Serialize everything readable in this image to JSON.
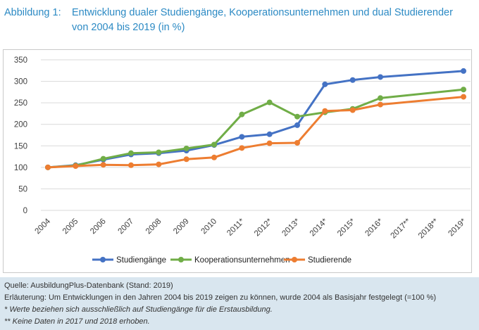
{
  "caption": {
    "number": "Abbildung 1:",
    "text": "Entwicklung dualer Studiengänge, Kooperationsunternehmen und dual Studierender von 2004 bis 2019 (in %)"
  },
  "chart_data": {
    "type": "line",
    "categories": [
      "2004",
      "2005",
      "2006",
      "2007",
      "2008",
      "2009",
      "2010",
      "2011*",
      "2012*",
      "2013*",
      "2014*",
      "2015*",
      "2016*",
      "2017**",
      "2018**",
      "2019*"
    ],
    "ylim": [
      0,
      350
    ],
    "yticks": [
      0,
      50,
      100,
      150,
      200,
      250,
      300,
      350
    ],
    "grid": true,
    "legend_position": "bottom",
    "series": [
      {
        "name": "Studiengänge",
        "color": "#4472c4",
        "values": [
          100,
          105,
          118,
          130,
          133,
          139,
          152,
          171,
          177,
          198,
          293,
          303,
          310,
          null,
          null,
          324
        ]
      },
      {
        "name": "Kooperationsunternehmen",
        "color": "#70ad47",
        "values": [
          100,
          104,
          120,
          133,
          135,
          144,
          153,
          223,
          251,
          218,
          228,
          236,
          261,
          null,
          null,
          281
        ]
      },
      {
        "name": "Studierende",
        "color": "#ed7d31",
        "values": [
          100,
          103,
          106,
          105,
          107,
          119,
          123,
          145,
          156,
          157,
          231,
          233,
          246,
          null,
          null,
          264
        ]
      }
    ]
  },
  "notes": {
    "source": "Quelle: AusbildungPlus-Datenbank (Stand: 2019)",
    "explanation": "Erläuterung: Um Entwicklungen in den Jahren 2004 bis 2019 zeigen zu können, wurde 2004 als Basisjahr festgelegt (=100 %)",
    "note1": "* Werte beziehen sich ausschließlich auf Studiengänge für die Erstausbildung.",
    "note2": "** Keine Daten in 2017 und 2018 erhoben."
  }
}
